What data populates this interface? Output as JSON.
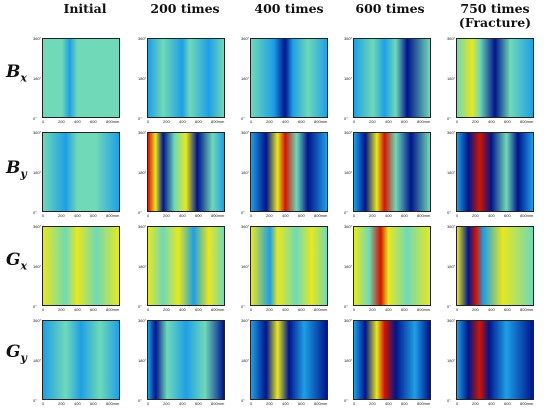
{
  "columns": [
    "Initial",
    "200 times",
    "400 times",
    "600 times",
    "750 times",
    "(Fracture)"
  ],
  "rows": [
    {
      "base": "B",
      "sub": "x"
    },
    {
      "base": "B",
      "sub": "y"
    },
    {
      "base": "G",
      "sub": "x"
    },
    {
      "base": "G",
      "sub": "y"
    }
  ],
  "axis": {
    "y_ticks": [
      "0°",
      "180°",
      "360°"
    ],
    "x_ticks": [
      "0",
      "200",
      "400",
      "600",
      "800mm"
    ]
  },
  "colormap": {
    "low": "#00148c",
    "mid_low": "#1e9fe6",
    "mid": "#6fd9b8",
    "mid_high": "#e8e81e",
    "high": "#d21400"
  }
}
